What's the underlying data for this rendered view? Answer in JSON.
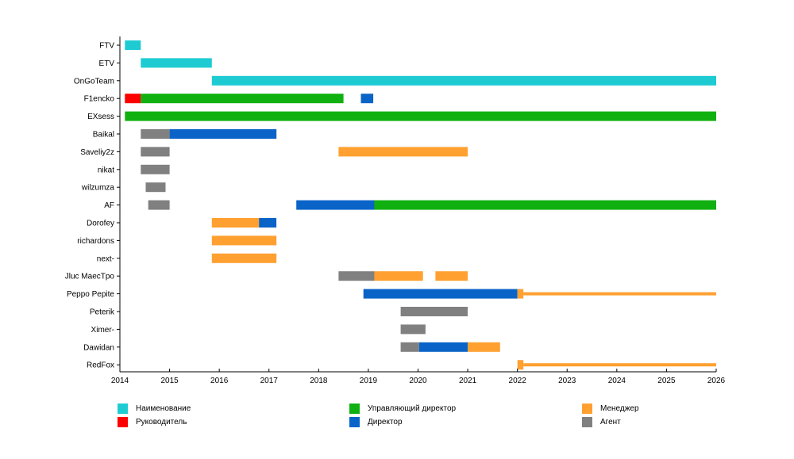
{
  "chart_data": {
    "type": "timeline",
    "xlim": [
      2014,
      2026
    ],
    "x_ticks": [
      "2014",
      "2015",
      "2016",
      "2017",
      "2018",
      "2019",
      "2020",
      "2021",
      "2022",
      "2023",
      "2024",
      "2025",
      "2026"
    ],
    "colors": {
      "name": "#1ecbd3",
      "leader": "#ff0000",
      "md": "#10b010",
      "director": "#0a64c8",
      "manager": "#ffa030",
      "agent": "#808080"
    },
    "legend": [
      {
        "key": "name",
        "label": "Наименование"
      },
      {
        "key": "leader",
        "label": "Руководитель"
      },
      {
        "key": "md",
        "label": "Управляющий директор"
      },
      {
        "key": "director",
        "label": "Директор"
      },
      {
        "key": "manager",
        "label": "Менеджер"
      },
      {
        "key": "agent",
        "label": "Агент"
      }
    ],
    "rows": [
      {
        "name": "FTV",
        "segments": [
          {
            "start": 2014.1,
            "end": 2014.42,
            "role": "name"
          }
        ]
      },
      {
        "name": "ETV",
        "segments": [
          {
            "start": 2014.42,
            "end": 2015.85,
            "role": "name"
          }
        ]
      },
      {
        "name": "OnGoTeam",
        "segments": [
          {
            "start": 2015.85,
            "end": 2026.0,
            "role": "name"
          }
        ]
      },
      {
        "name": "F1encko",
        "segments": [
          {
            "start": 2014.1,
            "end": 2014.42,
            "role": "leader"
          },
          {
            "start": 2014.42,
            "end": 2018.5,
            "role": "md"
          },
          {
            "start": 2018.85,
            "end": 2019.1,
            "role": "director"
          }
        ]
      },
      {
        "name": "EXsess",
        "segments": [
          {
            "start": 2014.1,
            "end": 2026.0,
            "role": "md"
          }
        ]
      },
      {
        "name": "Baikal",
        "segments": [
          {
            "start": 2014.42,
            "end": 2015.0,
            "role": "agent"
          },
          {
            "start": 2015.0,
            "end": 2017.15,
            "role": "director"
          }
        ]
      },
      {
        "name": "Saveliy2z",
        "segments": [
          {
            "start": 2014.42,
            "end": 2015.0,
            "role": "agent"
          },
          {
            "start": 2018.4,
            "end": 2021.0,
            "role": "manager"
          }
        ]
      },
      {
        "name": "nikat",
        "segments": [
          {
            "start": 2014.42,
            "end": 2015.0,
            "role": "agent"
          }
        ]
      },
      {
        "name": "wilzumza",
        "segments": [
          {
            "start": 2014.52,
            "end": 2014.92,
            "role": "agent"
          }
        ]
      },
      {
        "name": "AF",
        "segments": [
          {
            "start": 2014.57,
            "end": 2015.0,
            "role": "agent"
          },
          {
            "start": 2017.55,
            "end": 2019.12,
            "role": "director"
          },
          {
            "start": 2019.12,
            "end": 2026.0,
            "role": "md"
          }
        ]
      },
      {
        "name": "Dorofey",
        "segments": [
          {
            "start": 2015.85,
            "end": 2016.8,
            "role": "manager"
          },
          {
            "start": 2016.8,
            "end": 2017.15,
            "role": "director"
          }
        ]
      },
      {
        "name": "richardons",
        "segments": [
          {
            "start": 2015.85,
            "end": 2017.15,
            "role": "manager"
          }
        ]
      },
      {
        "name": "next-",
        "segments": [
          {
            "start": 2015.85,
            "end": 2017.15,
            "role": "manager"
          }
        ]
      },
      {
        "name": "Jluc MaecTpo",
        "segments": [
          {
            "start": 2018.4,
            "end": 2019.12,
            "role": "agent"
          },
          {
            "start": 2019.12,
            "end": 2020.1,
            "role": "manager"
          },
          {
            "start": 2020.35,
            "end": 2021.0,
            "role": "manager"
          }
        ]
      },
      {
        "name": "Peppo Pepite",
        "segments": [
          {
            "start": 2018.9,
            "end": 2022.0,
            "role": "director"
          },
          {
            "start": 2022.0,
            "end": 2022.12,
            "role": "manager"
          },
          {
            "start": 2022.12,
            "end": 2026.0,
            "role": "manager",
            "thin": true
          }
        ]
      },
      {
        "name": "Peterik",
        "segments": [
          {
            "start": 2019.65,
            "end": 2021.0,
            "role": "agent"
          }
        ]
      },
      {
        "name": "Ximer-",
        "segments": [
          {
            "start": 2019.65,
            "end": 2020.15,
            "role": "agent"
          }
        ]
      },
      {
        "name": "Dawidan",
        "segments": [
          {
            "start": 2019.65,
            "end": 2020.02,
            "role": "agent"
          },
          {
            "start": 2020.02,
            "end": 2021.0,
            "role": "director"
          },
          {
            "start": 2021.0,
            "end": 2021.65,
            "role": "manager"
          }
        ]
      },
      {
        "name": "RedFox",
        "segments": [
          {
            "start": 2022.0,
            "end": 2022.12,
            "role": "manager"
          },
          {
            "start": 2022.12,
            "end": 2026.0,
            "role": "manager",
            "thin": true
          }
        ]
      }
    ]
  }
}
